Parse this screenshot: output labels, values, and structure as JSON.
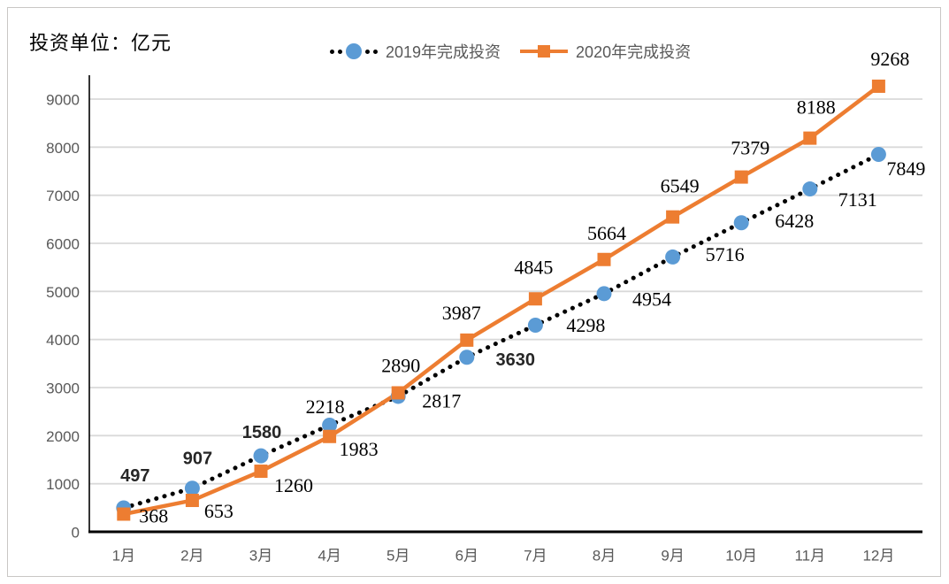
{
  "chart": {
    "unit_label": "投资单位：亿元"
  },
  "colors": {
    "blue": "#5B9BD5",
    "orange": "#ED7D31",
    "grid": "#D9D9D9",
    "axis": "#000000",
    "tick_text": "#595959",
    "serif_label_text": "#000000",
    "sans_label_text": "#262626",
    "border": "#C9C7C5"
  },
  "chart_data": {
    "type": "line",
    "unit_label": "投资单位：亿元",
    "categories": [
      "1月",
      "2月",
      "3月",
      "4月",
      "5月",
      "6月",
      "7月",
      "8月",
      "9月",
      "10月",
      "11月",
      "12月"
    ],
    "series": [
      {
        "name": "2019年完成投资",
        "values": [
          497,
          907,
          1580,
          2218,
          2817,
          3630,
          4298,
          4954,
          5716,
          6428,
          7131,
          7849
        ],
        "color": "#5B9BD5",
        "line_style": "dotted-black",
        "marker": "circle"
      },
      {
        "name": "2020年完成投资",
        "values": [
          368,
          653,
          1260,
          1983,
          2890,
          3987,
          4845,
          5664,
          6549,
          7379,
          8188,
          9268
        ],
        "color": "#ED7D31",
        "line_style": "solid",
        "marker": "square"
      }
    ],
    "yticks": [
      0,
      1000,
      2000,
      3000,
      4000,
      5000,
      6000,
      7000,
      8000,
      9000
    ],
    "ylim": [
      0,
      9500
    ],
    "grid": true,
    "legend_position": "top-center",
    "label_offsets": [
      [
        [
          13,
          -36
        ],
        [
          6,
          -33
        ],
        [
          1,
          -26
        ],
        [
          -5,
          -21
        ],
        [
          49,
          5
        ],
        [
          55,
          3
        ],
        [
          57,
          0
        ],
        [
          54,
          6
        ],
        [
          59,
          -3
        ],
        [
          60,
          -2
        ],
        [
          54,
          12
        ],
        [
          31,
          16
        ]
      ],
      [
        [
          34,
          2
        ],
        [
          30,
          12
        ],
        [
          37,
          16
        ],
        [
          33,
          14
        ],
        [
          3,
          -31
        ],
        [
          -6,
          -31
        ],
        [
          -2,
          -36
        ],
        [
          3,
          -30
        ],
        [
          8,
          -35
        ],
        [
          10,
          -33
        ],
        [
          7,
          -35
        ],
        [
          13,
          -31
        ]
      ]
    ],
    "sans_label_indices": [
      [
        0,
        1,
        2,
        5
      ],
      []
    ]
  }
}
